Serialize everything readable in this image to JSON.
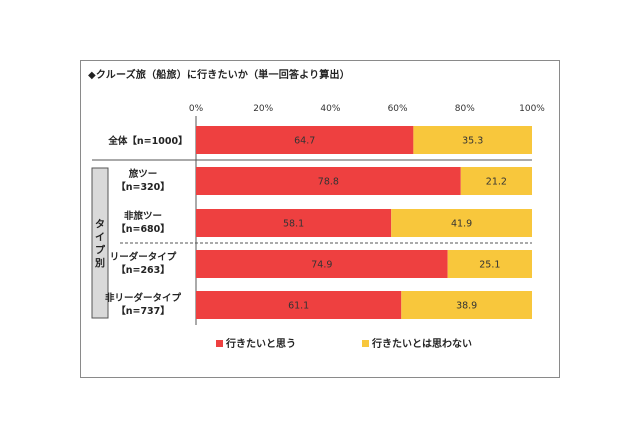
{
  "chart_data": {
    "type": "bar",
    "orientation": "horizontal-stacked-100",
    "title": "◆クルーズ旅（船旅）に行きたいか（単一回答より算出）",
    "ticks": [
      "0%",
      "20%",
      "40%",
      "60%",
      "80%",
      "100%"
    ],
    "xlim": [
      0,
      100
    ],
    "group_label": "タイプ別",
    "categories": [
      {
        "line1": "全体【n=1000】",
        "line2": ""
      },
      {
        "line1": "旅ツー",
        "line2": "【n=320】"
      },
      {
        "line1": "非旅ツー",
        "line2": "【n=680】"
      },
      {
        "line1": "リーダータイプ",
        "line2": "【n=263】"
      },
      {
        "line1": "非リーダータイプ",
        "line2": "【n=737】"
      }
    ],
    "series": [
      {
        "name": "行きたいと思う",
        "color": "#ee4040",
        "values": [
          64.7,
          78.8,
          58.1,
          74.9,
          61.1
        ],
        "labels": [
          "64.7",
          "78.8",
          "58.1",
          "74.9",
          "61.1"
        ]
      },
      {
        "name": "行きたいとは思わない",
        "color": "#f8c73c",
        "values": [
          35.3,
          21.2,
          41.9,
          25.1,
          38.9
        ],
        "labels": [
          "35.3",
          "21.2",
          "41.9",
          "25.1",
          "38.9"
        ]
      }
    ]
  }
}
